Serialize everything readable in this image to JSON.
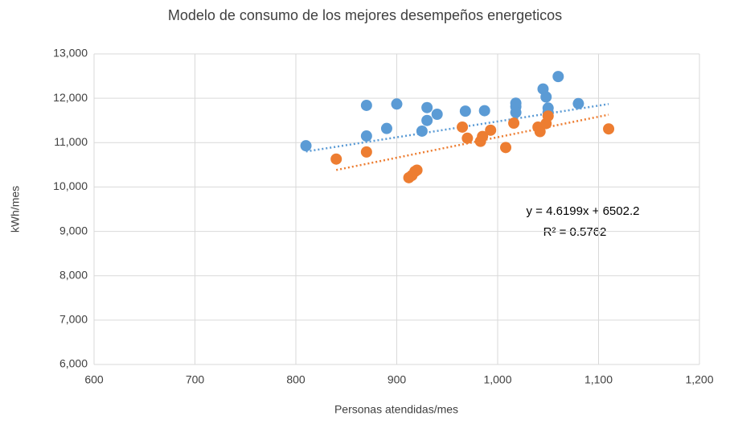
{
  "chart_data": {
    "type": "scatter",
    "title": "Modelo de consumo de los mejores desempeños energeticos",
    "x_label": "Personas atendidas/mes",
    "y_label": "kWh/mes",
    "xlim": [
      600,
      1200
    ],
    "xticks": [
      600,
      700,
      800,
      900,
      {
        "value": 1000,
        "label": "1,000"
      },
      {
        "value": 1100,
        "label": "1,100"
      },
      {
        "value": 1200,
        "label": "1,200"
      }
    ],
    "ylim": [
      6000,
      13000
    ],
    "yticks": [
      {
        "value": 6000,
        "label": "6,000"
      },
      {
        "value": 7000,
        "label": "7,000"
      },
      {
        "value": 8000,
        "label": "8,000"
      },
      {
        "value": 9000,
        "label": "9,000"
      },
      {
        "value": 10000,
        "label": "10,000"
      },
      {
        "value": 11000,
        "label": "11,000"
      },
      {
        "value": 12000,
        "label": "12,000"
      },
      {
        "value": 13000,
        "label": "13,000"
      }
    ],
    "grid": true,
    "series": [
      {
        "color": "#5b9bd5",
        "x": [
          810,
          870,
          870,
          890,
          900,
          925,
          930,
          930,
          940,
          968,
          987,
          1018,
          1018,
          1018,
          1045,
          1048,
          1050,
          1050,
          1060,
          1080
        ],
        "y": [
          10930,
          11840,
          11150,
          11320,
          11870,
          11260,
          11790,
          11500,
          11640,
          11710,
          11720,
          11890,
          11810,
          11680,
          12210,
          12030,
          11780,
          11680,
          12490,
          11880
        ]
      },
      {
        "color": "#ed7d31",
        "x": [
          840,
          870,
          912,
          915,
          918,
          920,
          965,
          970,
          983,
          985,
          993,
          1008,
          1016,
          1040,
          1042,
          1048,
          1050,
          1110
        ],
        "y": [
          10630,
          10790,
          10210,
          10260,
          10350,
          10380,
          11350,
          11100,
          11030,
          11140,
          11280,
          10890,
          11440,
          11350,
          11250,
          11430,
          11600,
          11310
        ]
      }
    ],
    "trendlines": [
      {
        "color": "#5b9bd5",
        "x": [
          810,
          1110
        ],
        "y": [
          10800,
          11870
        ]
      },
      {
        "color": "#ed7d31",
        "x": [
          840,
          1110
        ],
        "y": [
          10383,
          11630
        ]
      }
    ],
    "annotations": [
      "y = 4.6199x + 6502.2",
      "R² = 0.5762"
    ]
  }
}
